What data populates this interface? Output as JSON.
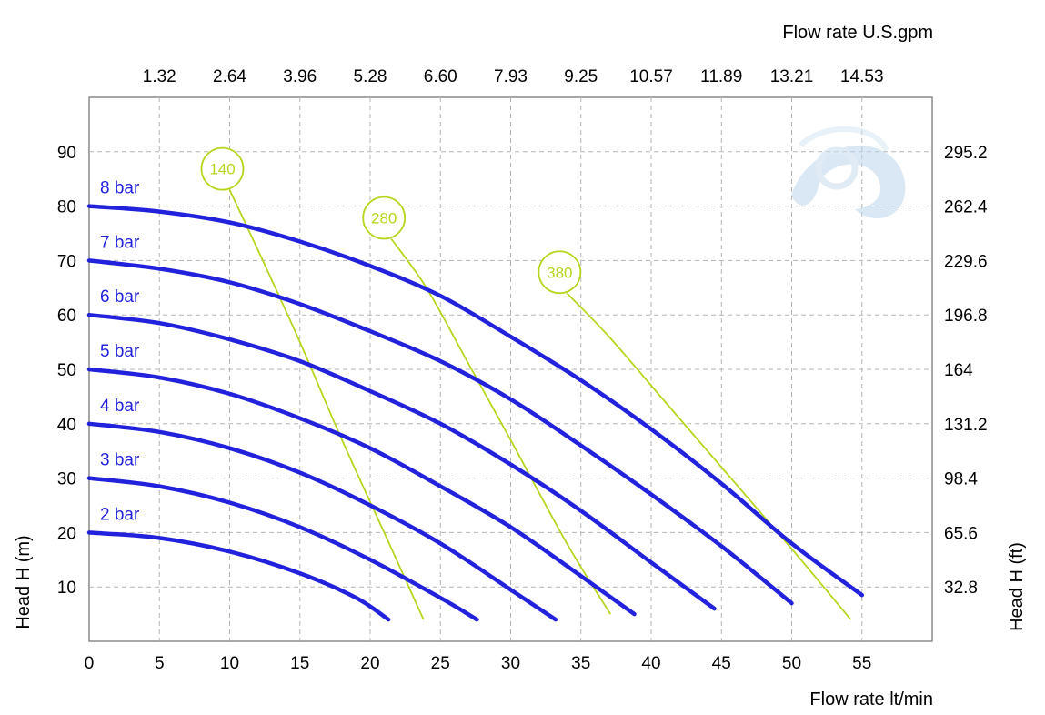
{
  "chart_data": {
    "type": "line",
    "x_axis_bottom": {
      "label": "Flow rate  lt/min",
      "range": [
        0,
        60
      ],
      "ticks": [
        "0",
        "5",
        "10",
        "15",
        "20",
        "25",
        "30",
        "35",
        "40",
        "45",
        "50",
        "55"
      ]
    },
    "x_axis_top": {
      "label": "Flow rate U.S.gpm",
      "ticks": [
        "1.32",
        "2.64",
        "3.96",
        "5.28",
        "6.60",
        "7.93",
        "9.25",
        "10.57",
        "11.89",
        "13.21",
        "14.53"
      ]
    },
    "y_axis_left": {
      "label": "Head H (m)",
      "range": [
        0,
        100
      ],
      "ticks": [
        "10",
        "20",
        "30",
        "40",
        "50",
        "60",
        "70",
        "80",
        "90"
      ]
    },
    "y_axis_right": {
      "label": "Head H (ft)",
      "ticks": [
        "32.8",
        "65.6",
        "98.4",
        "131.2",
        "164",
        "196.8",
        "229.6",
        "262.4",
        "295.2"
      ]
    },
    "grid": true,
    "series": [
      {
        "name": "8 bar",
        "x": [
          0,
          5,
          10,
          15,
          20,
          25,
          30,
          35,
          40,
          45,
          50,
          55
        ],
        "y": [
          80,
          79,
          77,
          73.5,
          69,
          63.5,
          56,
          48,
          39,
          29,
          18,
          8.5
        ]
      },
      {
        "name": "7 bar",
        "x": [
          0,
          5,
          10,
          15,
          20,
          25,
          30,
          35,
          40,
          45,
          50
        ],
        "y": [
          70,
          68.5,
          66,
          62,
          57,
          51.5,
          44.5,
          36,
          27,
          17.5,
          7
        ]
      },
      {
        "name": "6 bar",
        "x": [
          0,
          5,
          10,
          15,
          20,
          25,
          30,
          35,
          40,
          44.5
        ],
        "y": [
          60,
          58.5,
          55.5,
          51.5,
          46,
          40,
          32.5,
          24,
          14.5,
          6
        ]
      },
      {
        "name": "5 bar",
        "x": [
          0,
          5,
          10,
          15,
          20,
          25,
          30,
          35,
          38.8
        ],
        "y": [
          50,
          48.5,
          45.5,
          41,
          35.5,
          28.5,
          21,
          12,
          5
        ]
      },
      {
        "name": "4 bar",
        "x": [
          0,
          5,
          10,
          15,
          20,
          25,
          30,
          33.2
        ],
        "y": [
          40,
          38.5,
          35.5,
          31,
          25,
          18,
          9.5,
          4
        ]
      },
      {
        "name": "3 bar",
        "x": [
          0,
          5,
          10,
          15,
          20,
          25,
          27.6
        ],
        "y": [
          30,
          28.5,
          25.5,
          21,
          15,
          8,
          4
        ]
      },
      {
        "name": "2 bar",
        "x": [
          0,
          5,
          10,
          15,
          19,
          21.3
        ],
        "y": [
          20,
          19,
          16.5,
          12.5,
          8,
          4
        ]
      }
    ],
    "efficiency_lines": [
      {
        "name": "140",
        "x": [
          10,
          12,
          15,
          18,
          21,
          23.8
        ],
        "y": [
          83,
          72,
          55,
          37,
          20,
          4
        ]
      },
      {
        "name": "280",
        "x": [
          21.5,
          24,
          27,
          30,
          34,
          37.1
        ],
        "y": [
          74,
          65,
          51,
          37,
          18,
          5
        ]
      },
      {
        "name": "380",
        "x": [
          34,
          37,
          41,
          45,
          50,
          54.2
        ],
        "y": [
          64,
          56,
          44,
          32,
          17,
          4
        ]
      }
    ]
  }
}
